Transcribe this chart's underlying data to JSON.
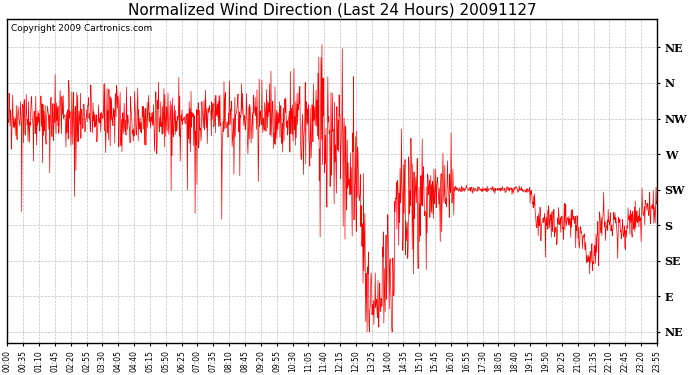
{
  "title": "Normalized Wind Direction (Last 24 Hours) 20091127",
  "copyright_text": "Copyright 2009 Cartronics.com",
  "line_color": "#ff0000",
  "background_color": "#ffffff",
  "grid_color": "#b0b0b0",
  "y_tick_labels": [
    "NE",
    "N",
    "NW",
    "W",
    "SW",
    "S",
    "SE",
    "E",
    "NE"
  ],
  "y_tick_values": [
    8,
    7,
    6,
    5,
    4,
    3,
    2,
    1,
    0
  ],
  "y_lim": [
    -0.3,
    8.8
  ],
  "x_tick_labels": [
    "00:00",
    "00:35",
    "01:10",
    "01:45",
    "02:20",
    "02:55",
    "03:30",
    "04:05",
    "04:40",
    "05:15",
    "05:50",
    "06:25",
    "07:00",
    "07:35",
    "08:10",
    "08:45",
    "09:20",
    "09:55",
    "10:30",
    "11:05",
    "11:40",
    "12:15",
    "12:50",
    "13:25",
    "14:00",
    "14:35",
    "15:10",
    "15:45",
    "16:20",
    "16:55",
    "17:30",
    "18:05",
    "18:40",
    "19:15",
    "19:50",
    "20:25",
    "21:00",
    "21:35",
    "22:10",
    "22:45",
    "23:20",
    "23:55"
  ],
  "title_fontsize": 11,
  "copyright_fontsize": 6.5,
  "tick_fontsize": 5.5,
  "y_label_fontsize": 8
}
